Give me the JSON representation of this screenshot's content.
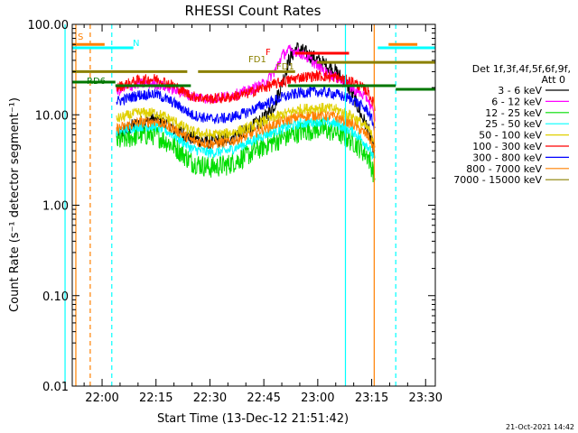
{
  "chart_data": {
    "type": "line",
    "title": "RHESSI Count Rates",
    "xlabel": "Start Time (13-Dec-12 21:51:42)",
    "ylabel": "Count Rate (s⁻¹ detector segment⁻¹)",
    "y_scale": "log",
    "ylim": [
      0.01,
      100.0
    ],
    "xlim_minutes_after_21_51_42": [
      0,
      101
    ],
    "x_ticks": [
      "22:00",
      "22:15",
      "22:30",
      "22:45",
      "23:00",
      "23:15",
      "23:30"
    ],
    "y_ticks": [
      "0.01",
      "0.10",
      "1.00",
      "10.00",
      "100.00"
    ],
    "legend": {
      "placement": "right",
      "header": [
        "Det 1f,3f,4f,5f,6f,9f,",
        "Att 0"
      ],
      "entries": [
        {
          "label": "3 - 6 keV",
          "color": "#000000"
        },
        {
          "label": "6 - 12 keV",
          "color": "#ff00ff"
        },
        {
          "label": "12 - 25 keV",
          "color": "#00dd00"
        },
        {
          "label": "25 - 50 keV",
          "color": "#00ffff"
        },
        {
          "label": "50 - 100 keV",
          "color": "#e0d000"
        },
        {
          "label": "100 - 300 keV",
          "color": "#ff0000"
        },
        {
          "label": "300 - 800 keV",
          "color": "#0000ff"
        },
        {
          "label": "800 - 7000 keV",
          "color": "#ff8000"
        },
        {
          "label": "7000 - 15000 keV",
          "color": "#8b8000"
        }
      ]
    },
    "series": [
      {
        "name": "3 - 6 keV",
        "color": "#000000",
        "x": [
          "22:04",
          "22:10",
          "22:15",
          "22:20",
          "22:25",
          "22:30",
          "22:35",
          "22:40",
          "22:45",
          "22:48",
          "22:50",
          "22:52",
          "22:54",
          "22:56",
          "22:58",
          "23:00",
          "23:02",
          "23:05",
          "23:08",
          "23:10",
          "23:12",
          "23:14",
          "23:16"
        ],
        "y": [
          6,
          8,
          9,
          7,
          5.5,
          5,
          5.5,
          6.5,
          9,
          13,
          22,
          40,
          55,
          50,
          45,
          40,
          36,
          30,
          22,
          16,
          10,
          7,
          3.5
        ]
      },
      {
        "name": "6 - 12 keV",
        "color": "#ff00ff",
        "x": [
          "22:04",
          "22:10",
          "22:15",
          "22:20",
          "22:25",
          "22:30",
          "22:35",
          "22:40",
          "22:45",
          "22:48",
          "22:50",
          "22:52",
          "22:54",
          "22:56",
          "22:58",
          "23:00",
          "23:02",
          "23:05",
          "23:08",
          "23:10",
          "23:12",
          "23:14",
          "23:16"
        ],
        "y": [
          18,
          22,
          22,
          19,
          16,
          15,
          16,
          18,
          22,
          30,
          45,
          52,
          50,
          46,
          40,
          35,
          30,
          26,
          22,
          19,
          17,
          15,
          9
        ]
      },
      {
        "name": "12 - 25 keV",
        "color": "#00dd00",
        "x": [
          "22:04",
          "22:10",
          "22:15",
          "22:20",
          "22:25",
          "22:30",
          "22:35",
          "22:40",
          "22:45",
          "22:50",
          "22:55",
          "23:00",
          "23:05",
          "23:10",
          "23:14",
          "23:16"
        ],
        "y": [
          5,
          6,
          6,
          4.5,
          3,
          2.6,
          2.8,
          3.5,
          4.5,
          5.5,
          6.5,
          7,
          6.5,
          5,
          3.5,
          2
        ]
      },
      {
        "name": "25 - 50 keV",
        "color": "#00ffff",
        "x": [
          "22:04",
          "22:10",
          "22:15",
          "22:20",
          "22:25",
          "22:30",
          "22:35",
          "22:40",
          "22:45",
          "22:50",
          "22:55",
          "23:00",
          "23:05",
          "23:10",
          "23:14",
          "23:16"
        ],
        "y": [
          6.5,
          7.5,
          7.5,
          6,
          4.2,
          3.8,
          4,
          4.8,
          6,
          7,
          8,
          8.5,
          8,
          6.5,
          4.5,
          3
        ]
      },
      {
        "name": "50 - 100 keV",
        "color": "#e0d000",
        "x": [
          "22:04",
          "22:10",
          "22:15",
          "22:20",
          "22:25",
          "22:30",
          "22:35",
          "22:40",
          "22:45",
          "22:50",
          "22:55",
          "23:00",
          "23:05",
          "23:10",
          "23:14",
          "23:16"
        ],
        "y": [
          9,
          10.5,
          10.5,
          8.5,
          6.5,
          6,
          6.2,
          7,
          8.5,
          10,
          11.5,
          12,
          11.5,
          9.5,
          7,
          5
        ]
      },
      {
        "name": "100 - 300 keV",
        "color": "#ff0000",
        "x": [
          "22:04",
          "22:10",
          "22:15",
          "22:20",
          "22:25",
          "22:30",
          "22:35",
          "22:40",
          "22:45",
          "22:50",
          "22:55",
          "23:00",
          "23:05",
          "23:10",
          "23:14",
          "23:16"
        ],
        "y": [
          20,
          24,
          25,
          21,
          16,
          15,
          15.5,
          17,
          20,
          23,
          26,
          27,
          26,
          23,
          18,
          12
        ]
      },
      {
        "name": "300 - 800 keV",
        "color": "#0000ff",
        "x": [
          "22:04",
          "22:10",
          "22:15",
          "22:20",
          "22:25",
          "22:30",
          "22:35",
          "22:40",
          "22:45",
          "22:50",
          "22:55",
          "23:00",
          "23:05",
          "23:10",
          "23:14",
          "23:16"
        ],
        "y": [
          14,
          16.5,
          17,
          13.5,
          10,
          9,
          9.2,
          10.5,
          13,
          15.5,
          17.5,
          18,
          17,
          14.5,
          11,
          7
        ]
      },
      {
        "name": "800 - 7000 keV",
        "color": "#ff8000",
        "x": [
          "22:04",
          "22:10",
          "22:15",
          "22:20",
          "22:25",
          "22:30",
          "22:35",
          "22:40",
          "22:45",
          "22:50",
          "22:55",
          "23:00",
          "23:05",
          "23:10",
          "23:14",
          "23:16"
        ],
        "y": [
          7,
          8.2,
          8.5,
          7,
          5.2,
          4.8,
          5,
          5.8,
          7,
          8.4,
          9.6,
          10,
          9.5,
          7.8,
          5.8,
          4
        ]
      }
    ],
    "flag_bars": [
      {
        "label": "S",
        "color": "#ff8000",
        "y": 60
      },
      {
        "label": "N",
        "color": "#00ffff",
        "y": 55
      },
      {
        "label": "F",
        "color": "#ff0000",
        "y": 48
      },
      {
        "label": "FD1",
        "color": "#8b8000",
        "y": 38
      },
      {
        "label": "FD1",
        "color": "#8b8000",
        "y": 30
      },
      {
        "label": "RD6",
        "color": "#007700",
        "y": 21
      }
    ],
    "timestamp": "21-Oct-2021 14:42"
  }
}
